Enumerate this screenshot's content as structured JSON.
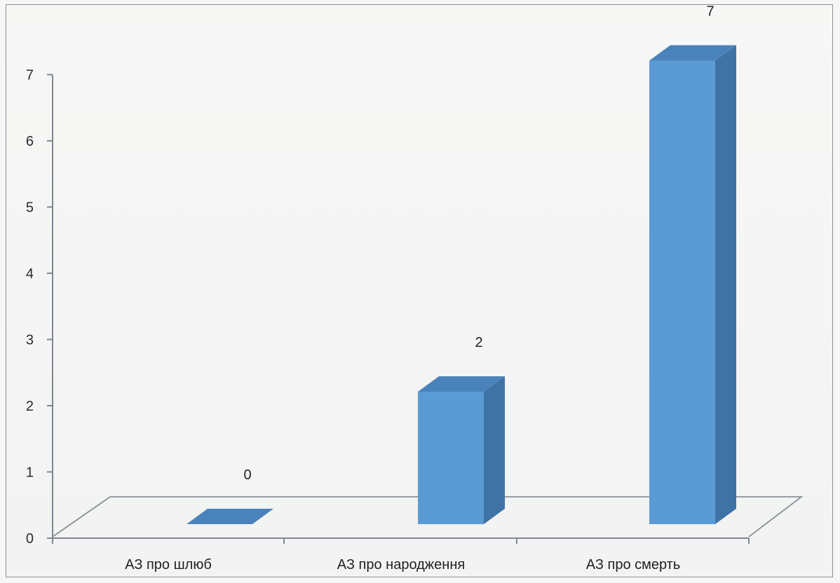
{
  "chart_data": {
    "type": "bar",
    "categories": [
      "АЗ про шлюб",
      "АЗ про народження",
      "АЗ про смерть"
    ],
    "values": [
      0,
      2,
      7
    ],
    "data_labels": [
      "0",
      "2",
      "7"
    ],
    "yticks": [
      "0",
      "1",
      "2",
      "3",
      "4",
      "5",
      "6",
      "7"
    ],
    "ylim": [
      0,
      7
    ],
    "grid": false,
    "legend": "none",
    "colors": {
      "bar_front": "#5b9bd5",
      "bar_side": "#3f73a6",
      "bar_top": "#4a83bb",
      "axis": "#7f8790"
    }
  }
}
